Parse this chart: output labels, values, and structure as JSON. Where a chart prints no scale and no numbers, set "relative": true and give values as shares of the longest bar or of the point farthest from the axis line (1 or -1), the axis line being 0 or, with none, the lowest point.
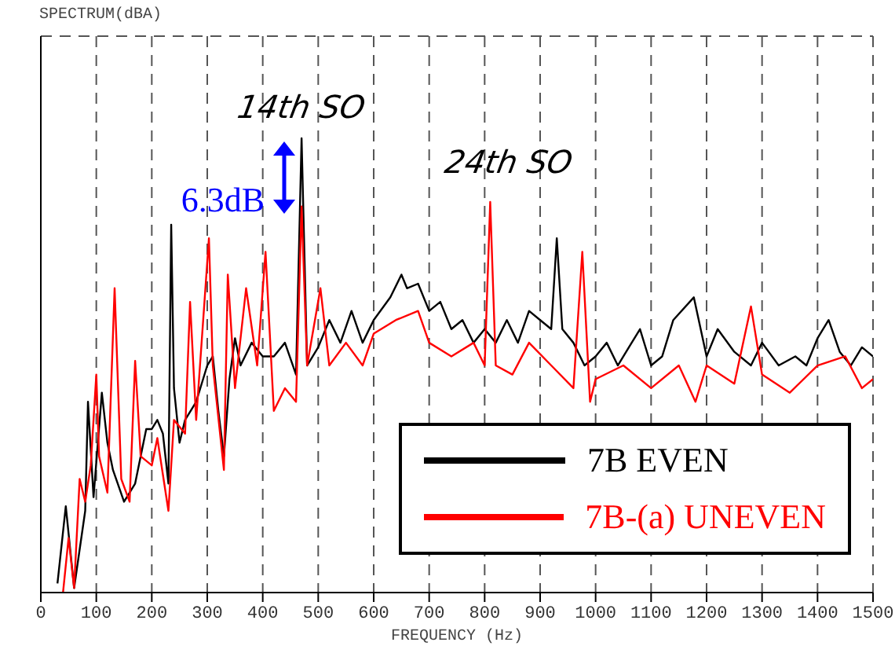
{
  "chart_data": {
    "type": "line",
    "relative": true,
    "xlabel": "FREQUENCY (Hz)",
    "xlim": [
      0,
      1500
    ],
    "xticks": [
      0,
      100,
      200,
      300,
      400,
      500,
      600,
      700,
      800,
      900,
      1000,
      1100,
      1200,
      1300,
      1400,
      1500
    ],
    "grid": true,
    "legend": "bottom right",
    "marker": "none",
    "line_style": "solid",
    "annotations": [
      "14th SO",
      "6.3dB",
      "24th SO",
      "SPECTRUM(dBA)"
    ],
    "series": [
      {
        "name": "7B EVEN",
        "color": "#000000",
        "x": [
          30,
          45,
          60,
          80,
          85,
          95,
          110,
          120,
          130,
          150,
          170,
          180,
          190,
          200,
          210,
          220,
          230,
          235,
          240,
          250,
          260,
          280,
          300,
          310,
          320,
          330,
          340,
          350,
          360,
          380,
          400,
          420,
          440,
          460,
          470,
          480,
          500,
          520,
          540,
          560,
          580,
          600,
          630,
          650,
          660,
          680,
          700,
          720,
          740,
          760,
          780,
          800,
          820,
          840,
          860,
          880,
          900,
          920,
          930,
          940,
          960,
          980,
          1000,
          1020,
          1040,
          1060,
          1080,
          1100,
          1120,
          1140,
          1177,
          1200,
          1220,
          1250,
          1280,
          1300,
          1330,
          1360,
          1380,
          1400,
          1420,
          1440,
          1460,
          1480,
          1500
        ],
        "values": [
          0.02,
          0.19,
          0.01,
          0.18,
          0.42,
          0.21,
          0.44,
          0.33,
          0.27,
          0.2,
          0.24,
          0.3,
          0.36,
          0.36,
          0.38,
          0.35,
          0.24,
          0.81,
          0.45,
          0.33,
          0.38,
          0.42,
          0.5,
          0.52,
          0.4,
          0.3,
          0.47,
          0.56,
          0.5,
          0.55,
          0.52,
          0.52,
          0.55,
          0.48,
          1.0,
          0.5,
          0.54,
          0.6,
          0.55,
          0.62,
          0.55,
          0.6,
          0.65,
          0.7,
          0.67,
          0.68,
          0.62,
          0.64,
          0.58,
          0.6,
          0.55,
          0.58,
          0.55,
          0.6,
          0.55,
          0.62,
          0.6,
          0.58,
          0.78,
          0.58,
          0.55,
          0.5,
          0.52,
          0.55,
          0.5,
          0.54,
          0.58,
          0.5,
          0.52,
          0.6,
          0.65,
          0.52,
          0.58,
          0.53,
          0.5,
          0.55,
          0.5,
          0.52,
          0.5,
          0.56,
          0.6,
          0.53,
          0.5,
          0.54,
          0.52
        ]
      },
      {
        "name": "7B-(a) UNEVEN",
        "color": "#ff0000",
        "x": [
          40,
          50,
          60,
          70,
          80,
          90,
          100,
          105,
          120,
          133,
          145,
          160,
          170,
          180,
          200,
          210,
          230,
          240,
          260,
          269,
          280,
          303,
          310,
          330,
          337,
          350,
          370,
          390,
          405,
          420,
          440,
          460,
          470,
          480,
          504,
          520,
          550,
          580,
          600,
          640,
          680,
          700,
          740,
          780,
          800,
          810,
          820,
          850,
          880,
          920,
          960,
          976,
          990,
          1000,
          1050,
          1100,
          1150,
          1180,
          1200,
          1250,
          1280,
          1300,
          1350,
          1400,
          1450,
          1480,
          1500
        ],
        "values": [
          0.0,
          0.12,
          0.01,
          0.25,
          0.2,
          0.28,
          0.48,
          0.3,
          0.22,
          0.67,
          0.25,
          0.2,
          0.51,
          0.3,
          0.28,
          0.34,
          0.18,
          0.38,
          0.35,
          0.64,
          0.38,
          0.78,
          0.5,
          0.27,
          0.7,
          0.45,
          0.67,
          0.5,
          0.75,
          0.4,
          0.45,
          0.42,
          0.85,
          0.5,
          0.67,
          0.5,
          0.55,
          0.5,
          0.57,
          0.6,
          0.62,
          0.55,
          0.52,
          0.55,
          0.5,
          0.86,
          0.5,
          0.48,
          0.55,
          0.5,
          0.45,
          0.75,
          0.42,
          0.47,
          0.5,
          0.45,
          0.5,
          0.42,
          0.5,
          0.46,
          0.63,
          0.48,
          0.44,
          0.5,
          0.52,
          0.45,
          0.47
        ]
      }
    ]
  }
}
